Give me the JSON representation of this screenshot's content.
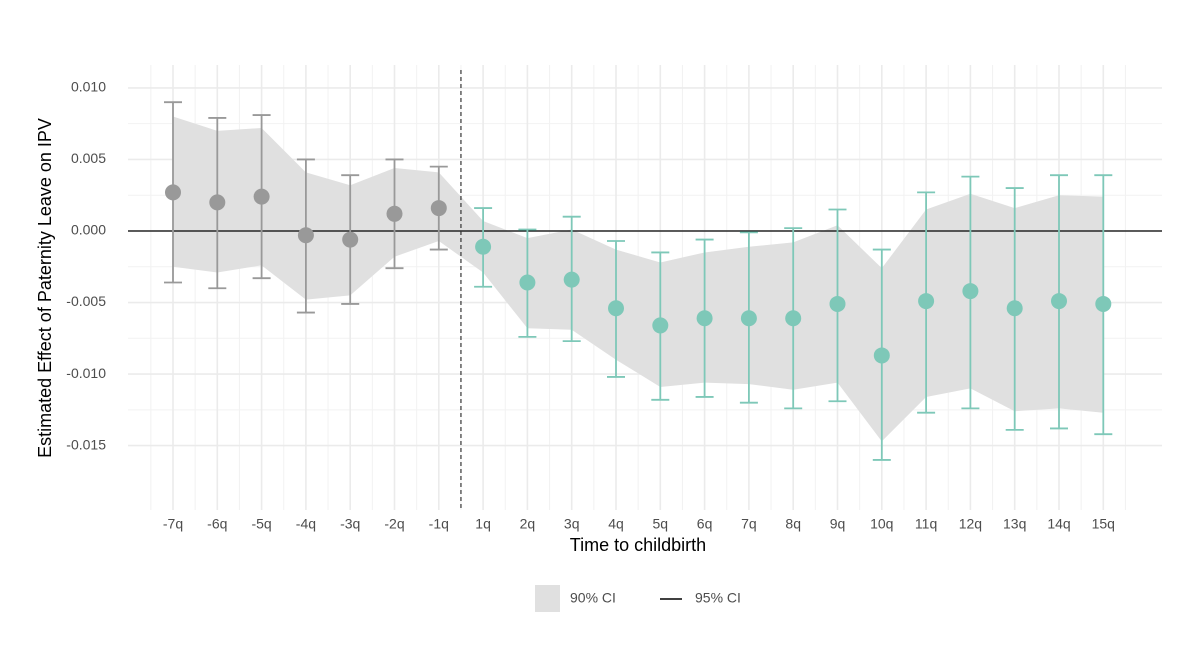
{
  "chart_data": {
    "type": "errorbar",
    "x_label": "Time to childbirth",
    "y_label": "Estimated Effect of Paternity Leave on IPV",
    "categories": [
      "-7q",
      "-6q",
      "-5q",
      "-4q",
      "-3q",
      "-2q",
      "-1q",
      "1q",
      "2q",
      "3q",
      "4q",
      "5q",
      "6q",
      "7q",
      "8q",
      "9q",
      "10q",
      "11q",
      "12q",
      "13q",
      "14q",
      "15q"
    ],
    "estimates": [
      0.0027,
      0.002,
      0.0024,
      -0.0003,
      -0.0006,
      0.0012,
      0.0016,
      -0.0011,
      -0.0036,
      -0.0034,
      -0.0054,
      -0.0066,
      -0.0061,
      -0.0061,
      -0.0061,
      -0.0051,
      -0.0087,
      -0.0049,
      -0.0042,
      -0.0054,
      -0.0049,
      -0.0051
    ],
    "ci95_low": [
      -0.0036,
      -0.004,
      -0.0033,
      -0.0057,
      -0.0051,
      -0.0026,
      -0.0013,
      -0.0039,
      -0.0074,
      -0.0077,
      -0.0102,
      -0.0118,
      -0.0116,
      -0.012,
      -0.0124,
      -0.0119,
      -0.016,
      -0.0127,
      -0.0124,
      -0.0139,
      -0.0138,
      -0.0142
    ],
    "ci95_high": [
      0.009,
      0.0079,
      0.0081,
      0.005,
      0.0039,
      0.005,
      0.0045,
      0.0016,
      0.0001,
      0.001,
      -0.0007,
      -0.0015,
      -0.0006,
      -0.0001,
      0.0002,
      0.0015,
      -0.0013,
      0.0027,
      0.0038,
      0.003,
      0.0039,
      0.0039
    ],
    "ci90_low": [
      -0.0025,
      -0.0029,
      -0.0024,
      -0.0048,
      -0.0045,
      -0.0018,
      -0.0007,
      -0.0029,
      -0.0068,
      -0.0069,
      -0.009,
      -0.0109,
      -0.0106,
      -0.0107,
      -0.0111,
      -0.0106,
      -0.0147,
      -0.0116,
      -0.011,
      -0.0126,
      -0.0124,
      -0.0127
    ],
    "ci90_high": [
      0.008,
      0.007,
      0.0072,
      0.0041,
      0.0032,
      0.0044,
      0.0041,
      0.0007,
      -0.0005,
      0.0001,
      -0.0013,
      -0.0022,
      -0.0015,
      -0.0011,
      -0.0008,
      0.0004,
      -0.0026,
      0.0015,
      0.0026,
      0.0016,
      0.0025,
      0.0024
    ],
    "point_colors": [
      "#999999",
      "#999999",
      "#999999",
      "#999999",
      "#999999",
      "#999999",
      "#999999",
      "#7ec8b8",
      "#7ec8b8",
      "#7ec8b8",
      "#7ec8b8",
      "#7ec8b8",
      "#7ec8b8",
      "#7ec8b8",
      "#7ec8b8",
      "#7ec8b8",
      "#7ec8b8",
      "#7ec8b8",
      "#7ec8b8",
      "#7ec8b8",
      "#7ec8b8",
      "#7ec8b8"
    ],
    "band_color": "#e0e0e0",
    "hline": 0,
    "ylim": [
      -0.0195,
      0.0116
    ],
    "yticks": [
      {
        "value": 0.01,
        "label": "0.010"
      },
      0.005,
      {
        "value": 0,
        "label": "0.000"
      },
      -0.005,
      {
        "value": -0.01,
        "label": "-0.010"
      },
      -0.015
    ],
    "grid": true,
    "legend_position": "bottom",
    "legend": [
      {
        "label": "90% CI",
        "kind": "band",
        "color": "#e0e0e0"
      },
      {
        "label": "95% CI",
        "kind": "line",
        "color": "#000000"
      }
    ]
  }
}
